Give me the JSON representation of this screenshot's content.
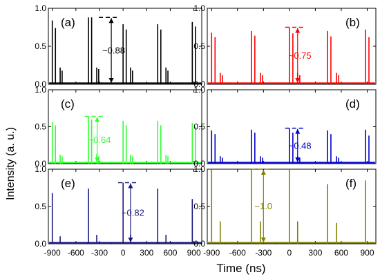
{
  "figure": {
    "ylabel": "Intensity (a. u.)",
    "xlabel": "Time (ns)",
    "x_tick_labels": [
      "-900",
      "-600",
      "-300",
      "0",
      "300",
      "600",
      "900"
    ],
    "y_tick_labels_top": [
      "0.0",
      "0.5",
      "1.0"
    ],
    "y_tick_labels_other": [
      "0.0",
      "0.5",
      "1.0"
    ]
  },
  "chart_data": [
    {
      "type": "line",
      "panel": "(a)",
      "color": "#000000",
      "xlim": [
        -950,
        1000
      ],
      "ylim": [
        0,
        1.0
      ],
      "annotation": "~0.88",
      "annotation_x": -150,
      "annotation_range": [
        0.0,
        0.88
      ],
      "pulses": [
        {
          "t": -900,
          "h": 0.84
        },
        {
          "t": -860,
          "h": 0.74
        },
        {
          "t": -800,
          "h": 0.22
        },
        {
          "t": -775,
          "h": 0.18
        },
        {
          "t": -440,
          "h": 0.88
        },
        {
          "t": -400,
          "h": 0.88
        },
        {
          "t": -335,
          "h": 0.22
        },
        {
          "t": -310,
          "h": 0.2
        },
        {
          "t": 0,
          "h": 0.79
        },
        {
          "t": 40,
          "h": 0.72
        },
        {
          "t": 95,
          "h": 0.22
        },
        {
          "t": 120,
          "h": 0.18
        },
        {
          "t": 440,
          "h": 0.79
        },
        {
          "t": 480,
          "h": 0.72
        },
        {
          "t": 545,
          "h": 0.22
        },
        {
          "t": 570,
          "h": 0.18
        },
        {
          "t": 880,
          "h": 0.82
        },
        {
          "t": 920,
          "h": 0.76
        }
      ]
    },
    {
      "type": "line",
      "panel": "(b)",
      "color": "#ff0000",
      "xlim": [
        -950,
        1000
      ],
      "ylim": [
        0,
        1.0
      ],
      "annotation": "~0.75",
      "annotation_x": 95,
      "annotation_range": [
        0.0,
        0.75
      ],
      "pulses": [
        {
          "t": -900,
          "h": 0.68
        },
        {
          "t": -860,
          "h": 0.62
        },
        {
          "t": -800,
          "h": 0.15
        },
        {
          "t": -775,
          "h": 0.12
        },
        {
          "t": -440,
          "h": 0.7
        },
        {
          "t": -400,
          "h": 0.64
        },
        {
          "t": -335,
          "h": 0.15
        },
        {
          "t": -310,
          "h": 0.12
        },
        {
          "t": 0,
          "h": 0.75
        },
        {
          "t": 40,
          "h": 0.67
        },
        {
          "t": 95,
          "h": 0.15
        },
        {
          "t": 120,
          "h": 0.12
        },
        {
          "t": 440,
          "h": 0.7
        },
        {
          "t": 480,
          "h": 0.63
        },
        {
          "t": 545,
          "h": 0.15
        },
        {
          "t": 570,
          "h": 0.12
        },
        {
          "t": 880,
          "h": 0.72
        },
        {
          "t": 920,
          "h": 0.62
        }
      ]
    },
    {
      "type": "line",
      "panel": "(c)",
      "color": "#33ff33",
      "xlim": [
        -950,
        1000
      ],
      "ylim": [
        0,
        1.0
      ],
      "annotation": "~0.64",
      "annotation_x": -330,
      "annotation_range": [
        0.0,
        0.64
      ],
      "pulses": [
        {
          "t": -900,
          "h": 0.56
        },
        {
          "t": -860,
          "h": 0.52
        },
        {
          "t": -800,
          "h": 0.12
        },
        {
          "t": -775,
          "h": 0.1
        },
        {
          "t": -440,
          "h": 0.64
        },
        {
          "t": -400,
          "h": 0.6
        },
        {
          "t": -335,
          "h": 0.13
        },
        {
          "t": -310,
          "h": 0.1
        },
        {
          "t": 0,
          "h": 0.58
        },
        {
          "t": 40,
          "h": 0.52
        },
        {
          "t": 95,
          "h": 0.12
        },
        {
          "t": 120,
          "h": 0.1
        },
        {
          "t": 440,
          "h": 0.58
        },
        {
          "t": 480,
          "h": 0.52
        },
        {
          "t": 545,
          "h": 0.12
        },
        {
          "t": 570,
          "h": 0.1
        },
        {
          "t": 880,
          "h": 0.55
        },
        {
          "t": 920,
          "h": 0.5
        }
      ]
    },
    {
      "type": "line",
      "panel": "(d)",
      "color": "#0000cc",
      "xlim": [
        -950,
        1000
      ],
      "ylim": [
        0,
        1.0
      ],
      "annotation": "~0.48",
      "annotation_x": 95,
      "annotation_range": [
        0.0,
        0.48
      ],
      "pulses": [
        {
          "t": -900,
          "h": 0.45
        },
        {
          "t": -860,
          "h": 0.4
        },
        {
          "t": -800,
          "h": 0.1
        },
        {
          "t": -775,
          "h": 0.08
        },
        {
          "t": -440,
          "h": 0.46
        },
        {
          "t": -400,
          "h": 0.42
        },
        {
          "t": -335,
          "h": 0.1
        },
        {
          "t": -310,
          "h": 0.08
        },
        {
          "t": 0,
          "h": 0.48
        },
        {
          "t": 40,
          "h": 0.42
        },
        {
          "t": 95,
          "h": 0.1
        },
        {
          "t": 120,
          "h": 0.08
        },
        {
          "t": 440,
          "h": 0.45
        },
        {
          "t": 480,
          "h": 0.4
        },
        {
          "t": 545,
          "h": 0.1
        },
        {
          "t": 570,
          "h": 0.08
        },
        {
          "t": 880,
          "h": 0.46
        },
        {
          "t": 920,
          "h": 0.38
        }
      ]
    },
    {
      "type": "line",
      "panel": "(e)",
      "color": "#1a1a80",
      "xlim": [
        -950,
        1000
      ],
      "ylim": [
        0,
        1.0
      ],
      "annotation": "~0.82",
      "annotation_x": 95,
      "annotation_range": [
        0.0,
        0.82
      ],
      "pulses": [
        {
          "t": -900,
          "h": 0.68
        },
        {
          "t": -800,
          "h": 0.1
        },
        {
          "t": -440,
          "h": 0.74
        },
        {
          "t": -335,
          "h": 0.12
        },
        {
          "t": 0,
          "h": 0.82
        },
        {
          "t": 95,
          "h": 0.12
        },
        {
          "t": 440,
          "h": 0.74
        },
        {
          "t": 545,
          "h": 0.12
        },
        {
          "t": 880,
          "h": 0.6
        }
      ]
    },
    {
      "type": "line",
      "panel": "(f)",
      "color": "#808000",
      "xlim": [
        -950,
        1000
      ],
      "ylim": [
        0,
        1.0
      ],
      "annotation": "~1.0",
      "annotation_x": -300,
      "annotation_range": [
        0.0,
        1.0
      ],
      "pulses": [
        {
          "t": -900,
          "h": 1.0
        },
        {
          "t": -800,
          "h": 0.3
        },
        {
          "t": -440,
          "h": 1.0
        },
        {
          "t": -335,
          "h": 0.3
        },
        {
          "t": 0,
          "h": 1.0
        },
        {
          "t": 95,
          "h": 0.3
        },
        {
          "t": 440,
          "h": 0.8
        },
        {
          "t": 545,
          "h": 0.28
        },
        {
          "t": 880,
          "h": 0.85
        }
      ]
    }
  ]
}
